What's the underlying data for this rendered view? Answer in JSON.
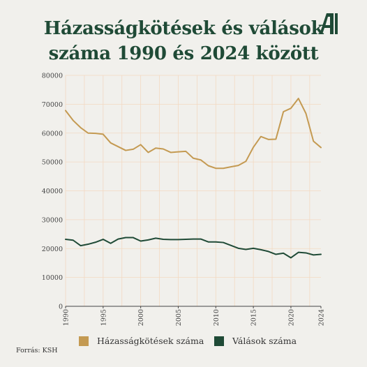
{
  "title": {
    "line1": "Házasságkötések és válások",
    "line2": "száma 1990 és 2024 között"
  },
  "logo": {
    "icon": "letter-a-logo",
    "color": "#1f4a36"
  },
  "source": "Forrás: KSH",
  "colors": {
    "marriages": "#c49a52",
    "divorces": "#1f4a36",
    "grid": "#f2d9c2",
    "background": "#f1f0ec"
  },
  "chart_data": {
    "type": "line",
    "title": "Házasságkötések és válások száma 1990 és 2024 között",
    "xlabel": "",
    "ylabel": "",
    "xlim": [
      1990,
      2024
    ],
    "ylim": [
      0,
      80000
    ],
    "x_ticks": [
      "1990",
      "1995",
      "2000",
      "2005",
      "2010",
      "2015",
      "2020",
      "2024"
    ],
    "y_ticks": [
      "0",
      "10000",
      "20000",
      "30000",
      "40000",
      "50000",
      "60000",
      "70000",
      "80000"
    ],
    "grid": true,
    "legend_position": "bottom",
    "x": [
      1990,
      1991,
      1992,
      1993,
      1994,
      1995,
      1996,
      1997,
      1998,
      1999,
      2000,
      2001,
      2002,
      2003,
      2004,
      2005,
      2006,
      2007,
      2008,
      2009,
      2010,
      2011,
      2012,
      2013,
      2014,
      2015,
      2016,
      2017,
      2018,
      2019,
      2020,
      2021,
      2022,
      2023,
      2024
    ],
    "series": [
      {
        "name": "Házasságkötések száma",
        "color": "#c49a52",
        "values": [
          67800,
          64400,
          61900,
          60000,
          59900,
          59600,
          56600,
          55300,
          54000,
          54400,
          56000,
          53300,
          54800,
          54500,
          53300,
          53500,
          53700,
          51300,
          50700,
          48700,
          47800,
          47800,
          48300,
          48800,
          50200,
          55100,
          58800,
          57800,
          57900,
          67400,
          68600,
          72000,
          66800,
          57200,
          55000
        ]
      },
      {
        "name": "Válások száma",
        "color": "#1f4a36",
        "values": [
          23200,
          22900,
          21000,
          21500,
          22200,
          23200,
          21800,
          23300,
          23800,
          23800,
          22600,
          23000,
          23600,
          23200,
          23100,
          23100,
          23200,
          23300,
          23300,
          22300,
          22300,
          22100,
          21100,
          20100,
          19700,
          20100,
          19600,
          19000,
          18000,
          18400,
          16800,
          18700,
          18500,
          17800,
          18000
        ]
      }
    ]
  }
}
